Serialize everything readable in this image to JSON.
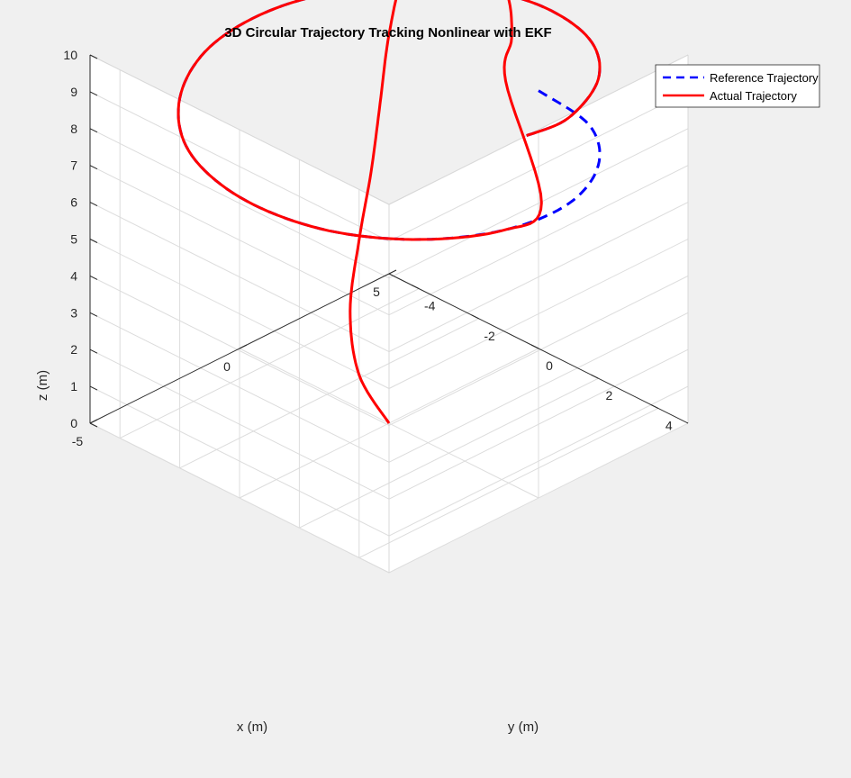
{
  "figure": {
    "background": "#f0f0f0"
  },
  "chart_data": {
    "type": "line",
    "projection": "3d",
    "title": "3D Circular Trajectory Tracking Nonlinear with EKF",
    "xlabel": "x (m)",
    "ylabel": "y (m)",
    "zlabel": "z (m)",
    "xlim": [
      -5,
      5
    ],
    "ylim": [
      -5,
      5
    ],
    "zlim": [
      0,
      10
    ],
    "x_ticks": [
      "-5",
      "0",
      "5"
    ],
    "y_ticks": [
      "-4",
      "-2",
      "0",
      "2",
      "4"
    ],
    "z_ticks": [
      "0",
      "1",
      "2",
      "3",
      "4",
      "5",
      "6",
      "7",
      "8",
      "9",
      "10"
    ],
    "grid": true,
    "legend_position": "top-right",
    "series": [
      {
        "name": "Reference Trajectory",
        "color": "#0000ff",
        "line_style": "dashed",
        "description_shape": "circle of radius 5 centred at origin, rising from z=7 to z=10 over about 0.9 turn",
        "points": [
          [
            5.0,
            0.0,
            7.0
          ],
          [
            4.5,
            2.2,
            7.16
          ],
          [
            3.1,
            3.9,
            7.33
          ],
          [
            1.1,
            4.9,
            7.5
          ],
          [
            -1.1,
            4.9,
            7.67
          ],
          [
            -3.1,
            3.9,
            7.83
          ],
          [
            -4.5,
            2.2,
            8.0
          ],
          [
            -5.0,
            0.0,
            8.17
          ],
          [
            -4.5,
            -2.2,
            8.33
          ],
          [
            -3.1,
            -3.9,
            8.5
          ],
          [
            -1.1,
            -4.9,
            8.67
          ],
          [
            1.1,
            -4.9,
            8.83
          ],
          [
            3.1,
            -3.9,
            9.0
          ],
          [
            4.5,
            -2.2,
            9.17
          ],
          [
            5.0,
            0.0,
            9.33
          ],
          [
            4.5,
            2.2,
            9.5
          ],
          [
            3.1,
            3.9,
            9.67
          ],
          [
            1.1,
            4.9,
            9.83
          ],
          [
            -0.4,
            5.0,
            10.0
          ]
        ]
      },
      {
        "name": "Actual Trajectory",
        "color": "#ff0000",
        "line_style": "solid",
        "description_shape": "starts at origin z=0, rises to z=10 and spirals, converging onto the reference circle",
        "points": [
          [
            0.0,
            0.0,
            0.0
          ],
          [
            0.5,
            -1.5,
            0.5
          ],
          [
            1.5,
            -2.8,
            1.3
          ],
          [
            2.8,
            -3.8,
            2.3
          ],
          [
            3.8,
            -4.4,
            3.5
          ],
          [
            4.5,
            -4.8,
            4.9
          ],
          [
            5.0,
            -5.0,
            6.5
          ],
          [
            5.3,
            -4.8,
            8.2
          ],
          [
            5.4,
            -4.2,
            9.4
          ],
          [
            5.3,
            -3.3,
            10.0
          ],
          [
            5.0,
            -2.2,
            10.2
          ],
          [
            4.6,
            -1.1,
            10.1
          ],
          [
            4.0,
            0.0,
            9.9
          ],
          [
            3.1,
            1.0,
            9.6
          ],
          [
            2.0,
            1.9,
            9.25
          ],
          [
            0.5,
            4.6,
            7.65
          ],
          [
            -1.1,
            4.9,
            7.67
          ],
          [
            -3.1,
            3.9,
            7.83
          ],
          [
            -4.5,
            2.2,
            8.0
          ],
          [
            -5.0,
            0.0,
            8.17
          ],
          [
            -4.5,
            -2.2,
            8.33
          ],
          [
            -3.1,
            -3.9,
            8.5
          ],
          [
            -1.1,
            -4.9,
            8.67
          ],
          [
            1.1,
            -4.9,
            8.83
          ],
          [
            3.1,
            -3.9,
            9.0
          ],
          [
            4.5,
            -2.2,
            9.17
          ],
          [
            5.0,
            0.0,
            9.33
          ],
          [
            4.5,
            2.2,
            9.5
          ],
          [
            3.1,
            3.9,
            9.67
          ],
          [
            1.1,
            4.9,
            9.83
          ],
          [
            -0.4,
            5.0,
            10.0
          ]
        ]
      }
    ]
  }
}
